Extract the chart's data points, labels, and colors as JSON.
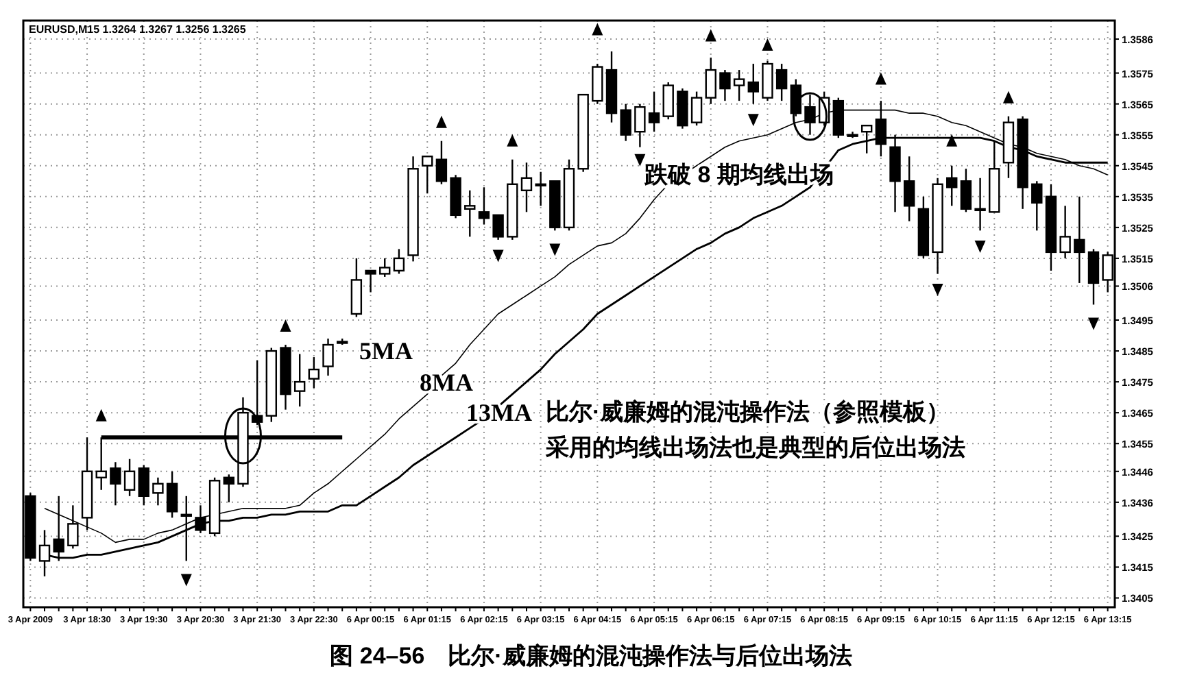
{
  "chart_data": {
    "type": "candlestick",
    "title": "图 24–56　比尔·威廉姆的混沌操作法与后位出场法",
    "subtitle": "EURUSD,M15  1.3264 1.3267 1.3256 1.3265",
    "annotations": [
      "5MA",
      "8MA",
      "13MA",
      "跌破 8 期均线出场",
      "比尔·威廉姆的混沌操作法（参照模板）",
      "采用的均线出场法也是典型的后位出场法"
    ],
    "categories": [
      "3 Apr 2009",
      null,
      null,
      null,
      "3 Apr 18:30",
      null,
      null,
      null,
      "3 Apr 19:30",
      null,
      null,
      null,
      "3 Apr 20:30",
      null,
      null,
      null,
      "3 Apr 21:30",
      null,
      null,
      null,
      "3 Apr 22:30",
      null,
      null,
      null,
      "6 Apr 00:15",
      null,
      null,
      null,
      "6 Apr 01:15",
      null,
      null,
      null,
      "6 Apr 02:15",
      null,
      null,
      null,
      "6 Apr 03:15",
      null,
      null,
      null,
      "6 Apr 04:15",
      null,
      null,
      null,
      "6 Apr 05:15",
      null,
      null,
      null,
      "6 Apr 06:15",
      null,
      null,
      null,
      "6 Apr 07:15",
      null,
      null,
      null,
      "6 Apr 08:15",
      null,
      null,
      null,
      "6 Apr 09:15",
      null,
      null,
      null,
      "6 Apr 10:15",
      null,
      null,
      null,
      "6 Apr 11:15",
      null,
      null,
      null,
      "6 Apr 12:15",
      null,
      null,
      null,
      "6 Apr 13:15"
    ],
    "ohlc": [
      [
        1.3438,
        1.3439,
        1.3417,
        1.3418
      ],
      [
        1.3417,
        1.3427,
        1.3412,
        1.3422
      ],
      [
        1.3424,
        1.3438,
        1.3417,
        1.342
      ],
      [
        1.3422,
        1.3435,
        1.3421,
        1.3429
      ],
      [
        1.3431,
        1.3457,
        1.3427,
        1.3446
      ],
      [
        1.3444,
        1.3457,
        1.344,
        1.3446
      ],
      [
        1.3447,
        1.3449,
        1.3435,
        1.3442
      ],
      [
        1.344,
        1.345,
        1.3438,
        1.3446
      ],
      [
        1.3447,
        1.3448,
        1.3435,
        1.3438
      ],
      [
        1.3439,
        1.3444,
        1.3435,
        1.3442
      ],
      [
        1.3442,
        1.3446,
        1.3431,
        1.3433
      ],
      [
        1.3432,
        1.3438,
        1.3417,
        1.3432
      ],
      [
        1.3431,
        1.3435,
        1.3426,
        1.3427
      ],
      [
        1.3426,
        1.3444,
        1.3425,
        1.3443
      ],
      [
        1.3444,
        1.3445,
        1.3436,
        1.3442
      ],
      [
        1.3442,
        1.347,
        1.3441,
        1.3465
      ],
      [
        1.3464,
        1.3482,
        1.3461,
        1.3462
      ],
      [
        1.3464,
        1.3486,
        1.3462,
        1.3485
      ],
      [
        1.3486,
        1.3487,
        1.3466,
        1.3471
      ],
      [
        1.3472,
        1.3484,
        1.3467,
        1.3475
      ],
      [
        1.3476,
        1.3483,
        1.3473,
        1.3479
      ],
      [
        1.348,
        1.3489,
        1.3477,
        1.3487
      ],
      [
        1.3488,
        1.3489,
        1.3487,
        1.3488
      ],
      [
        1.3497,
        1.3515,
        1.3496,
        1.3508
      ],
      [
        1.3511,
        1.3511,
        1.3504,
        1.351
      ],
      [
        1.351,
        1.3515,
        1.3509,
        1.3512
      ],
      [
        1.3511,
        1.3518,
        1.351,
        1.3515
      ],
      [
        1.3516,
        1.3548,
        1.3514,
        1.3544
      ],
      [
        1.3545,
        1.3548,
        1.3536,
        1.3548
      ],
      [
        1.3547,
        1.3553,
        1.3539,
        1.354
      ],
      [
        1.3541,
        1.3542,
        1.3528,
        1.3529
      ],
      [
        1.3531,
        1.3537,
        1.3522,
        1.3532
      ],
      [
        1.353,
        1.3538,
        1.3526,
        1.3528
      ],
      [
        1.3529,
        1.3529,
        1.3521,
        1.3522
      ],
      [
        1.3522,
        1.3547,
        1.3521,
        1.3539
      ],
      [
        1.3537,
        1.3546,
        1.353,
        1.3541
      ],
      [
        1.3539,
        1.3543,
        1.3532,
        1.3539
      ],
      [
        1.354,
        1.354,
        1.3524,
        1.3525
      ],
      [
        1.3525,
        1.3547,
        1.3524,
        1.3544
      ],
      [
        1.3544,
        1.3568,
        1.3543,
        1.3568
      ],
      [
        1.3566,
        1.3578,
        1.3565,
        1.3577
      ],
      [
        1.3576,
        1.3582,
        1.3559,
        1.3562
      ],
      [
        1.3563,
        1.3565,
        1.3553,
        1.3555
      ],
      [
        1.3556,
        1.3565,
        1.3551,
        1.3564
      ],
      [
        1.3562,
        1.3569,
        1.3556,
        1.3559
      ],
      [
        1.3561,
        1.3572,
        1.356,
        1.3571
      ],
      [
        1.3569,
        1.357,
        1.3557,
        1.3558
      ],
      [
        1.3559,
        1.3569,
        1.3558,
        1.3567
      ],
      [
        1.3567,
        1.358,
        1.3565,
        1.3576
      ],
      [
        1.3575,
        1.3576,
        1.3566,
        1.357
      ],
      [
        1.3571,
        1.3576,
        1.3566,
        1.3573
      ],
      [
        1.3572,
        1.3578,
        1.3565,
        1.3569
      ],
      [
        1.3567,
        1.3579,
        1.3566,
        1.3578
      ],
      [
        1.3576,
        1.3578,
        1.3566,
        1.357
      ],
      [
        1.3571,
        1.3573,
        1.3561,
        1.3562
      ],
      [
        1.3564,
        1.3568,
        1.3555,
        1.3559
      ],
      [
        1.3559,
        1.3569,
        1.3558,
        1.3567
      ],
      [
        1.3566,
        1.3567,
        1.3554,
        1.3555
      ],
      [
        1.3555,
        1.3556,
        1.3554,
        1.3555
      ],
      [
        1.3556,
        1.3558,
        1.3549,
        1.3558
      ],
      [
        1.356,
        1.3566,
        1.3548,
        1.3552
      ],
      [
        1.3551,
        1.3555,
        1.353,
        1.354
      ],
      [
        1.354,
        1.3548,
        1.3527,
        1.3532
      ],
      [
        1.3531,
        1.3535,
        1.3515,
        1.3516
      ],
      [
        1.3517,
        1.3541,
        1.351,
        1.3539
      ],
      [
        1.3541,
        1.3545,
        1.3532,
        1.3538
      ],
      [
        1.354,
        1.3544,
        1.353,
        1.3531
      ],
      [
        1.3531,
        1.3541,
        1.3524,
        1.3531
      ],
      [
        1.353,
        1.3553,
        1.353,
        1.3544
      ],
      [
        1.3546,
        1.3561,
        1.3541,
        1.3559
      ],
      [
        1.356,
        1.3561,
        1.3531,
        1.3538
      ],
      [
        1.3539,
        1.354,
        1.3524,
        1.3533
      ],
      [
        1.3535,
        1.3539,
        1.3511,
        1.3517
      ],
      [
        1.3517,
        1.3532,
        1.3515,
        1.3522
      ],
      [
        1.3521,
        1.3535,
        1.3507,
        1.3517
      ],
      [
        1.3517,
        1.3518,
        1.35,
        1.3507
      ],
      [
        1.3508,
        1.3517,
        1.3504,
        1.3516
      ]
    ],
    "series": [
      {
        "type": "line",
        "color": "#000000",
        "values": [
          null,
          1.3434,
          1.3432,
          1.343,
          1.3428,
          1.3426,
          1.3423,
          1.3424,
          1.3424,
          1.3426,
          1.3427,
          1.3429,
          1.3431,
          1.3432,
          1.3433,
          1.3434,
          1.3434,
          1.3434,
          1.3434,
          1.3435,
          1.3439,
          1.3442,
          1.3446,
          1.345,
          1.3454,
          1.3458,
          1.3463,
          1.3467,
          1.3471,
          1.3477,
          1.3481,
          1.3487,
          1.3492,
          1.3497,
          1.35,
          1.3503,
          1.3506,
          1.3509,
          1.3513,
          1.3516,
          1.3519,
          1.352,
          1.3523,
          1.3528,
          1.3534,
          1.3539,
          1.3542,
          1.3545,
          1.3548,
          1.3551,
          1.3553,
          1.3554,
          1.3555,
          1.3557,
          1.3559,
          1.356,
          1.3562,
          1.3563,
          1.3563,
          1.3563,
          1.3563,
          1.3563,
          1.3562,
          1.3562,
          1.3561,
          1.3559,
          1.3558,
          1.3556,
          1.3554,
          1.3552,
          1.3551,
          1.3549,
          1.3548,
          1.3547,
          1.3545,
          1.3544,
          1.3542
        ]
      },
      {
        "type": "line",
        "color": "#000000",
        "values": [
          null,
          1.3419,
          1.3418,
          1.3418,
          1.3419,
          1.3419,
          1.342,
          1.3421,
          1.3422,
          1.3423,
          1.3425,
          1.3427,
          1.3429,
          1.343,
          1.343,
          1.3431,
          1.3431,
          1.3432,
          1.3432,
          1.3433,
          1.3433,
          1.3433,
          1.3435,
          1.3435,
          1.3438,
          1.3441,
          1.3444,
          1.3448,
          1.3451,
          1.3454,
          1.3457,
          1.346,
          1.3463,
          1.3467,
          1.3471,
          1.3475,
          1.3479,
          1.3484,
          1.3488,
          1.3492,
          1.3497,
          1.35,
          1.3503,
          1.3506,
          1.3509,
          1.3512,
          1.3515,
          1.3518,
          1.352,
          1.3523,
          1.3525,
          1.3528,
          1.353,
          1.3532,
          1.3535,
          1.3538,
          1.3544,
          1.355,
          1.3552,
          1.3553,
          1.3554,
          1.3554,
          1.3554,
          1.3554,
          1.3554,
          1.3554,
          1.3554,
          1.3554,
          1.3553,
          1.3551,
          1.355,
          1.3548,
          1.3547,
          1.3546,
          1.3546,
          1.3546,
          1.3546
        ]
      },
      {
        "type": "line",
        "color": "#000000",
        "values": [
          null,
          null,
          null,
          null,
          null,
          1.3457,
          1.3457,
          1.3457,
          1.3457,
          1.3457,
          1.3457,
          1.3457,
          1.3457,
          1.3457,
          1.3457,
          1.3457,
          1.3457,
          1.3457,
          1.3457,
          1.3457,
          1.3457,
          1.3457,
          1.3457,
          null,
          null,
          null,
          null,
          null,
          null,
          null,
          null,
          null,
          null,
          null,
          null,
          null,
          null,
          null,
          null,
          null,
          null,
          null,
          null,
          null,
          null,
          null,
          null,
          null,
          null,
          null,
          null,
          null,
          null,
          null,
          null,
          null,
          null,
          null,
          null,
          null,
          null,
          null,
          null,
          null,
          null,
          null,
          null,
          null,
          null,
          null,
          null,
          null,
          null,
          null,
          null,
          null,
          null
        ]
      },
      {
        "type": "scatter",
        "color": "#000000",
        "marker": "triangle",
        "values": [
          null,
          null,
          null,
          null,
          null,
          1.3464,
          null,
          null,
          null,
          null,
          null,
          null,
          null,
          null,
          null,
          null,
          null,
          null,
          1.3493,
          null,
          null,
          null,
          null,
          null,
          null,
          null,
          null,
          null,
          null,
          1.3559,
          null,
          null,
          null,
          null,
          1.3553,
          null,
          null,
          null,
          null,
          null,
          1.3589,
          null,
          null,
          null,
          null,
          null,
          null,
          null,
          1.3587,
          null,
          null,
          null,
          1.3584,
          null,
          null,
          null,
          null,
          null,
          null,
          null,
          1.3573,
          null,
          null,
          null,
          null,
          1.3553,
          null,
          null,
          null,
          1.3567,
          null,
          null,
          null,
          null,
          null,
          null,
          null
        ]
      },
      {
        "type": "scatter",
        "color": "#000000",
        "marker": "triangle",
        "values": [
          null,
          null,
          null,
          null,
          null,
          null,
          null,
          null,
          null,
          null,
          null,
          1.3411,
          null,
          null,
          null,
          null,
          null,
          null,
          null,
          null,
          null,
          null,
          null,
          null,
          null,
          null,
          null,
          null,
          null,
          null,
          null,
          null,
          null,
          1.3516,
          null,
          null,
          null,
          1.3518,
          null,
          null,
          null,
          null,
          null,
          1.3547,
          null,
          null,
          null,
          null,
          null,
          null,
          null,
          1.356,
          null,
          null,
          null,
          null,
          null,
          null,
          null,
          null,
          null,
          null,
          null,
          null,
          1.3505,
          null,
          null,
          1.3519,
          null,
          null,
          null,
          null,
          null,
          null,
          null,
          1.3494,
          null
        ]
      }
    ],
    "ylim": [
      1.3402,
      1.3592
    ],
    "yticks": [
      1.3405,
      1.3415,
      1.3425,
      1.3436,
      1.3446,
      1.3455,
      1.3465,
      1.3475,
      1.3485,
      1.3495,
      1.3506,
      1.3515,
      1.3525,
      1.3535,
      1.3545,
      1.3555,
      1.3565,
      1.3575,
      1.3586
    ],
    "grid": true
  }
}
